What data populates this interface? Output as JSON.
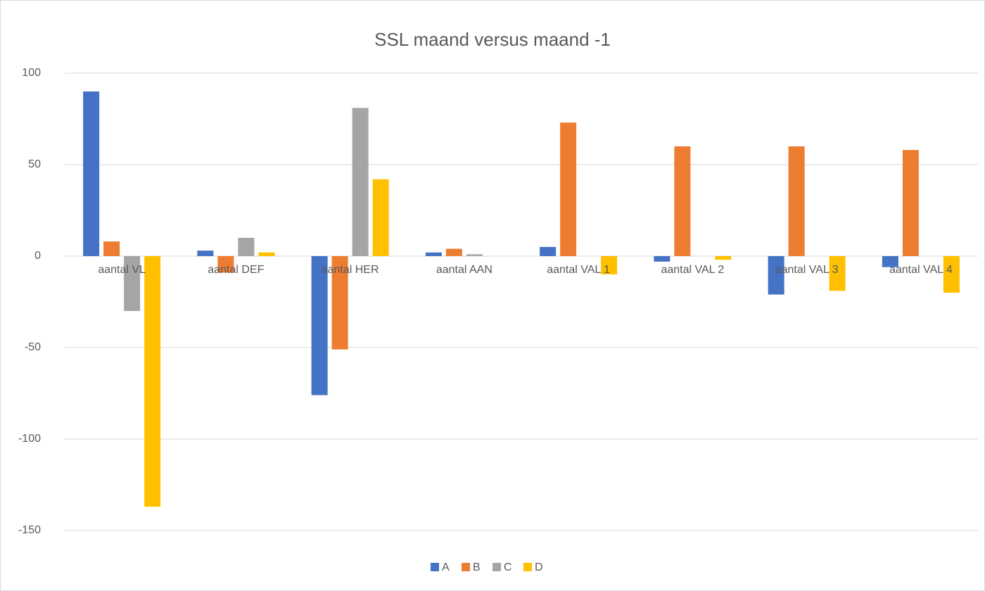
{
  "chart_data": {
    "type": "bar",
    "title": "SSL maand versus maand -1",
    "categories": [
      "aantal VL",
      "aantal DEF",
      "aantal HER",
      "aantal AAN",
      "aantal VAL 1",
      "aantal VAL 2",
      "aantal VAL 3",
      "aantal VAL 4"
    ],
    "series": [
      {
        "name": "A",
        "color": "#4472c4",
        "values": [
          90,
          3,
          -76,
          2,
          5,
          -3,
          -21,
          -6
        ]
      },
      {
        "name": "B",
        "color": "#ed7d31",
        "values": [
          8,
          -9,
          -51,
          4,
          73,
          60,
          60,
          58
        ]
      },
      {
        "name": "C",
        "color": "#a5a5a5",
        "values": [
          -30,
          10,
          81,
          1,
          0,
          0,
          0,
          0
        ]
      },
      {
        "name": "D",
        "color": "#ffc000",
        "values": [
          -137,
          2,
          42,
          0,
          -10,
          -2,
          -19,
          -20
        ]
      }
    ],
    "ylim": [
      -150,
      100
    ],
    "yticks": [
      -150,
      -100,
      -50,
      0,
      50,
      100
    ],
    "grid": true,
    "legend": "bottom"
  }
}
